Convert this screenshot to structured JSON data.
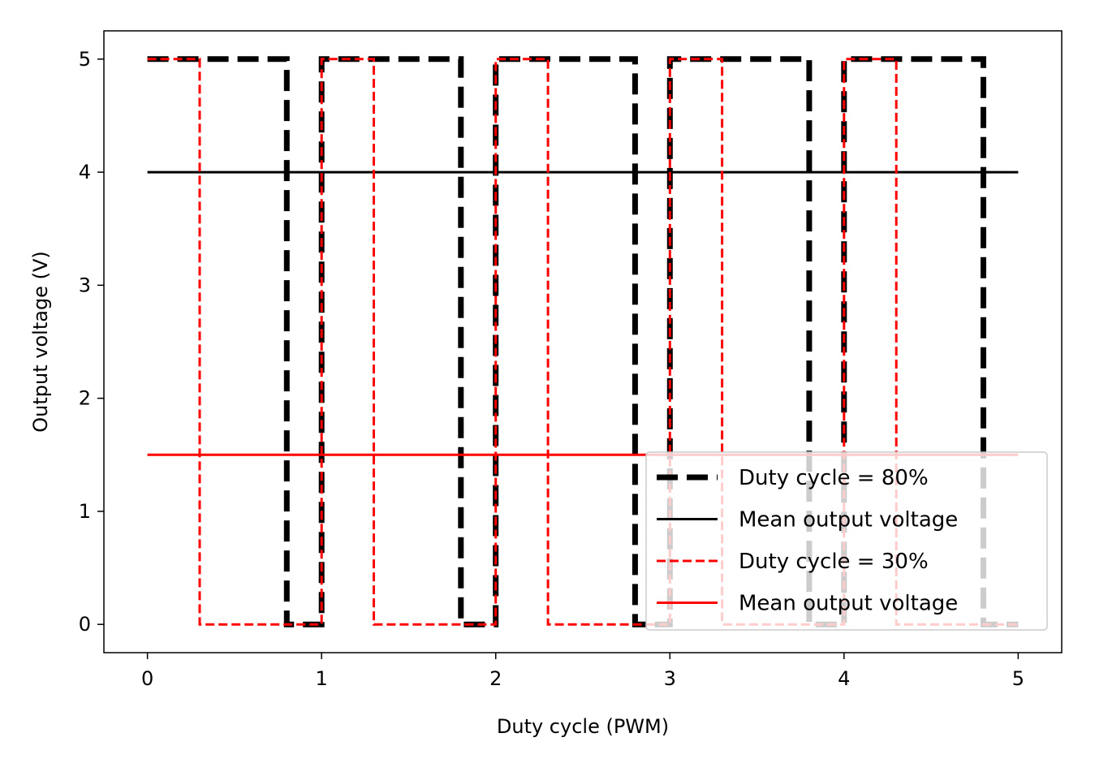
{
  "chart_data": {
    "type": "line",
    "title": "",
    "xlabel": "Duty cycle (PWM)",
    "ylabel": "Output voltage (V)",
    "xlim": [
      -0.25,
      5.25
    ],
    "ylim": [
      -0.25,
      5.25
    ],
    "xticks": [
      0,
      1,
      2,
      3,
      4,
      5
    ],
    "yticks": [
      0,
      1,
      2,
      3,
      4,
      5
    ],
    "grid": false,
    "legend_position": "lower-right",
    "series": [
      {
        "name": "Duty cycle = 80%",
        "color": "#000000",
        "style": "thick-dashed",
        "x": [
          0,
          0.8,
          0.8,
          1,
          1,
          1.8,
          1.8,
          2,
          2,
          2.8,
          2.8,
          3,
          3,
          3.8,
          3.8,
          4,
          4,
          4.8,
          4.8,
          5
        ],
        "y": [
          5,
          5,
          0,
          0,
          5,
          5,
          0,
          0,
          5,
          5,
          0,
          0,
          5,
          5,
          0,
          0,
          5,
          5,
          0,
          0
        ]
      },
      {
        "name": "Mean output voltage",
        "color": "#000000",
        "style": "solid",
        "x": [
          0,
          5
        ],
        "y": [
          4,
          4
        ]
      },
      {
        "name": "Duty cycle = 30%",
        "color": "#ff0000",
        "style": "dashed",
        "x": [
          0,
          0.3,
          0.3,
          1,
          1,
          1.3,
          1.3,
          2,
          2,
          2.3,
          2.3,
          3,
          3,
          3.3,
          3.3,
          4,
          4,
          4.3,
          4.3,
          5
        ],
        "y": [
          5,
          5,
          0,
          0,
          5,
          5,
          0,
          0,
          5,
          5,
          0,
          0,
          5,
          5,
          0,
          0,
          5,
          5,
          0,
          0
        ]
      },
      {
        "name": "Mean output voltage",
        "color": "#ff0000",
        "style": "solid",
        "x": [
          0,
          5
        ],
        "y": [
          1.5,
          1.5
        ]
      }
    ]
  }
}
